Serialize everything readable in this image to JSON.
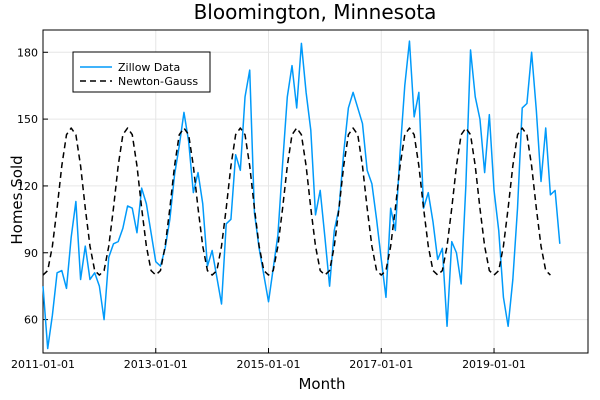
{
  "chart_data": {
    "type": "line",
    "title": "Bloomington, Minnesota",
    "xlabel": "Month",
    "ylabel": "Homes Sold",
    "xlim": [
      "2011-01-01",
      "2020-09-01"
    ],
    "ylim": [
      45,
      190
    ],
    "x_ticks": [
      "2011-01-01",
      "2013-01-01",
      "2015-01-01",
      "2017-01-01",
      "2019-01-01"
    ],
    "y_ticks": [
      60,
      90,
      120,
      150,
      180
    ],
    "grid": true,
    "legend_position": "top-left",
    "x_start": "2011-01",
    "x_step": "month",
    "series": [
      {
        "name": "Zillow Data",
        "style": "solid",
        "color": "#009AFA",
        "values": [
          75,
          47,
          62,
          81,
          82,
          74,
          97,
          113,
          78,
          93,
          78,
          81,
          75,
          60,
          88,
          94,
          95,
          101,
          111,
          110,
          99,
          119,
          112,
          99,
          86,
          84,
          92,
          105,
          125,
          138,
          153,
          140,
          117,
          126,
          112,
          84,
          91,
          79,
          67,
          103,
          105,
          134,
          127,
          160,
          172,
          108,
          92,
          80,
          68,
          83,
          98,
          130,
          160,
          174,
          155,
          184,
          162,
          145,
          107,
          118,
          97,
          75,
          100,
          110,
          135,
          155,
          162,
          155,
          148,
          127,
          121,
          105,
          87,
          70,
          110,
          100,
          135,
          165,
          185,
          151,
          162,
          110,
          117,
          104,
          87,
          92,
          57,
          95,
          90,
          76,
          120,
          181,
          160,
          150,
          126,
          152,
          118,
          100,
          70,
          57,
          78,
          110,
          155,
          157,
          180,
          154,
          122,
          146,
          116,
          118,
          94
        ]
      },
      {
        "name": "Newton-Gauss",
        "style": "dashed",
        "color": "#000000",
        "values": [
          80,
          82,
          93,
          110,
          129,
          143,
          146,
          143,
          129,
          110,
          93,
          82,
          80,
          82,
          93,
          110,
          129,
          143,
          146,
          143,
          129,
          110,
          93,
          82,
          80,
          82,
          93,
          110,
          129,
          143,
          146,
          143,
          129,
          110,
          93,
          82,
          80,
          82,
          93,
          110,
          129,
          143,
          146,
          143,
          129,
          110,
          93,
          82,
          80,
          82,
          93,
          110,
          129,
          143,
          146,
          143,
          129,
          110,
          93,
          82,
          80,
          82,
          93,
          110,
          129,
          143,
          146,
          143,
          129,
          110,
          93,
          82,
          80,
          82,
          93,
          110,
          129,
          143,
          146,
          143,
          129,
          110,
          93,
          82,
          80,
          82,
          93,
          110,
          129,
          143,
          146,
          143,
          129,
          110,
          93,
          82,
          80,
          82,
          93,
          110,
          129,
          143,
          146,
          143,
          129,
          110,
          93,
          82,
          80
        ]
      }
    ]
  }
}
